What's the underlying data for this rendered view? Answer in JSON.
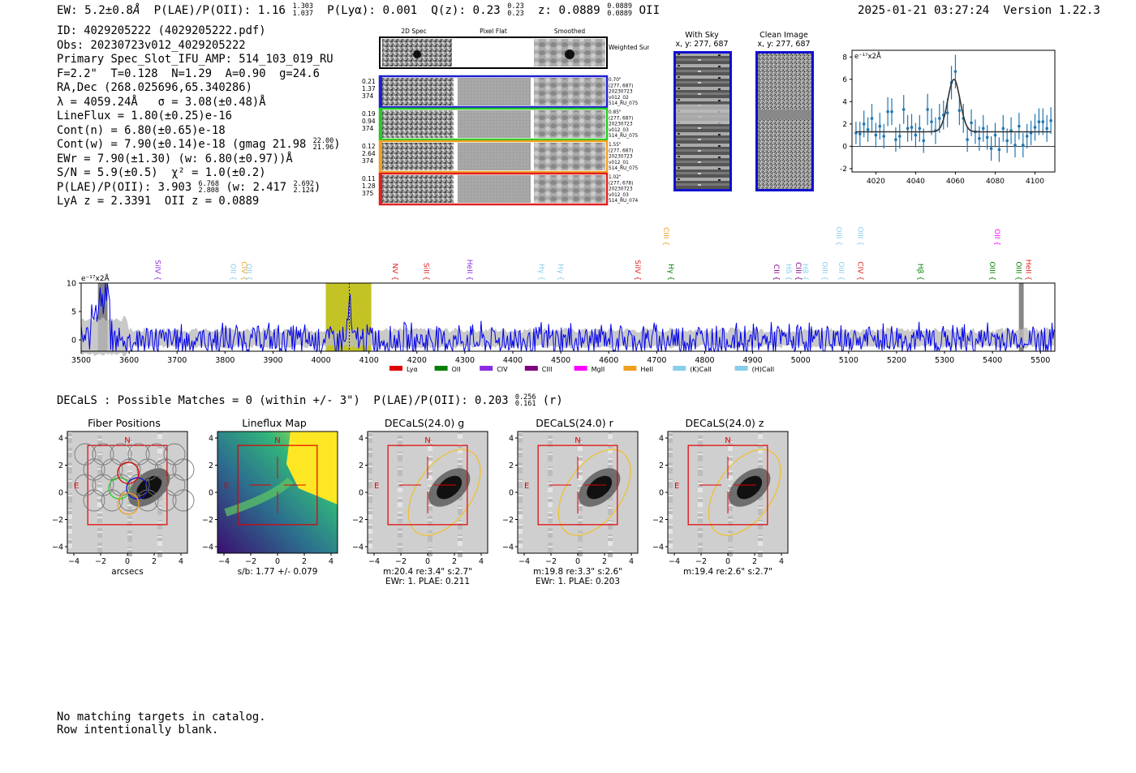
{
  "header": {
    "ew_label": "EW: 5.2±0.8",
    "ew_unit": "Å",
    "plae_label": "P(LAE)/P(OII): 1.16",
    "plae_hi": "1.303",
    "plae_lo": "1.037",
    "plya_label": "P(Lyα): 0.001",
    "qz_label": "Q(z): 0.23",
    "qz_hi": "0.23",
    "qz_lo": "0.23",
    "z_label": "z: 0.0889",
    "z_hi": "0.0889",
    "z_lo": "0.0889",
    "z_line": "OII",
    "timestamp": "2025-01-21 03:27:24",
    "version": "Version 1.22.3"
  },
  "info": {
    "id": "ID: 4029205222 (4029205222.pdf)",
    "obs": "Obs: 20230723v012_4029205222",
    "primary": "Primary Spec_Slot_IFU_AMP: 514_103_019_RU",
    "fiber": "F=2.2\"  T=0.128  N=1.29  A=0.90  g=24.6",
    "radec": "RA,Dec (268.025696,65.340286)",
    "lambda": "λ = 4059.24Å   σ = 3.08(±0.48)Å",
    "lineflux": "LineFlux = 1.80(±0.25)e-16",
    "contn": "Cont(n) = 6.80(±0.65)e-18",
    "contw": "Cont(w) = 7.90(±0.14)e-18 (gmag 21.98",
    "gmag_hi": "22.00",
    "gmag_lo": "21.96",
    "contw_end": ")",
    "ewr": "EWr = 7.90(±1.30) (w: 6.80(±0.97))Å",
    "sn": "S/N = 5.9(±0.5)  χ² = 1.0(±0.2)",
    "plae": "P(LAE)/P(OII): 3.903",
    "plae_hi": "6.768",
    "plae_lo": "2.808",
    "plae_w": "(w: 2.417",
    "plae_w_hi": "2.692",
    "plae_w_lo": "2.124",
    "plae_w_end": ")",
    "z": "LyA z = 2.3391  OII z = 0.0889"
  },
  "cutouts": {
    "col_labels": [
      "2D Spec",
      "Pixel Flat",
      "Smoothed"
    ],
    "weighted_label": "Weighted Sum",
    "rows": [
      {
        "left": [
          "0.21",
          "1.37",
          "374"
        ],
        "right": [
          "0.70\"",
          "(277, 687)",
          "20230723",
          "v012_02",
          "514_RU_075"
        ],
        "color": "#1f1fd0"
      },
      {
        "left": [
          "0.19",
          "0.94",
          "374"
        ],
        "right": [
          "0.85\"",
          "(277, 687)",
          "20230723",
          "v012_03",
          "514_RU_075"
        ],
        "color": "#22cc22"
      },
      {
        "left": [
          "0.12",
          "2.64",
          "374"
        ],
        "right": [
          "1.55\"",
          "(277, 687)",
          "20230723",
          "v012_01",
          "514_RU_075"
        ],
        "color": "#f0a020"
      },
      {
        "left": [
          "0.11",
          "1.28",
          "375"
        ],
        "right": [
          "1.02\"",
          "(277, 678)",
          "20230723",
          "v012_03",
          "514_RU_074"
        ],
        "color": "#e02020"
      }
    ]
  },
  "sky": {
    "with_sky_title": "With Sky",
    "with_sky_xy": "x, y: 277, 687",
    "clean_title": "Clean Image",
    "clean_xy": "x, y: 277, 687"
  },
  "chart_data": [
    {
      "type": "scatter",
      "title": "",
      "ylabel": "e⁻¹⁷x2Å",
      "xlabel": "",
      "xlim": [
        4008,
        4110
      ],
      "ylim": [
        -2.3,
        8.6
      ],
      "xticks": [
        4020,
        4040,
        4060,
        4080,
        4100
      ],
      "yticks": [
        -2,
        0,
        2,
        4,
        6,
        8
      ],
      "fit": {
        "center": 4059.24,
        "sigma": 3.08,
        "amp": 4.7,
        "base": 1.3,
        "color": "#333333"
      },
      "points_color": "#1f77b4",
      "x": [
        4010,
        4012,
        4014,
        4016,
        4018,
        4020,
        4022,
        4024,
        4026,
        4028,
        4030,
        4032,
        4034,
        4036,
        4038,
        4040,
        4042,
        4044,
        4046,
        4048,
        4050,
        4052,
        4054,
        4056,
        4058,
        4060,
        4062,
        4064,
        4066,
        4068,
        4070,
        4072,
        4074,
        4076,
        4078,
        4080,
        4082,
        4084,
        4086,
        4088,
        4090,
        4092,
        4094,
        4096,
        4098,
        4100,
        4102,
        4104,
        4106,
        4108
      ],
      "values": [
        1.2,
        1.1,
        2.0,
        1.5,
        2.5,
        1.0,
        1.8,
        0.9,
        3.1,
        3.1,
        0.6,
        0.9,
        3.3,
        1.6,
        1.7,
        1.0,
        1.6,
        0.5,
        3.3,
        2.2,
        1.4,
        2.5,
        2.8,
        3.0,
        5.7,
        6.7,
        3.2,
        2.5,
        0.6,
        2.1,
        1.3,
        0.7,
        1.6,
        0.8,
        -0.2,
        1.0,
        -0.3,
        1.6,
        0.5,
        1.4,
        0.1,
        1.8,
        0.1,
        0.9,
        1.2,
        1.7,
        2.2,
        2.2,
        1.6,
        2.3
      ],
      "errors": [
        1.0,
        1.1,
        1.2,
        1.1,
        1.3,
        1.1,
        1.2,
        1.1,
        1.3,
        1.2,
        1.1,
        1.1,
        1.3,
        1.2,
        1.2,
        1.1,
        1.2,
        1.1,
        1.4,
        1.2,
        1.2,
        1.3,
        1.3,
        1.3,
        1.5,
        1.5,
        1.3,
        1.3,
        1.1,
        1.2,
        1.1,
        1.1,
        1.2,
        1.1,
        1.1,
        1.1,
        1.1,
        1.2,
        1.1,
        1.2,
        1.1,
        1.2,
        1.1,
        1.1,
        1.1,
        1.2,
        1.2,
        1.2,
        1.2,
        1.2
      ]
    },
    {
      "type": "line",
      "title": "",
      "ylabel": "e⁻¹⁷x2Å",
      "xlim": [
        3500,
        5530
      ],
      "ylim": [
        -2,
        10
      ],
      "xticks": [
        3500,
        3600,
        3700,
        3800,
        3900,
        4000,
        4100,
        4200,
        4300,
        4400,
        4500,
        4600,
        4700,
        4800,
        4900,
        5000,
        5100,
        5200,
        5300,
        5400,
        5500
      ],
      "yticks": [
        0,
        5,
        10
      ],
      "highlight": {
        "x0": 4010,
        "x1": 4105,
        "line": 4059.24,
        "color": "#b8b800"
      },
      "masked": [
        {
          "x0": 3535,
          "x1": 3555
        },
        {
          "x0": 5455,
          "x1": 5465
        }
      ],
      "series_color": "#0000ee",
      "noise_seed": 7,
      "lines": [
        {
          "label": "SiIV",
          "x": 3655,
          "color": "#8a2be2",
          "tier": 0
        },
        {
          "label": "OII",
          "x": 3812,
          "color": "#87ceeb",
          "tier": 0
        },
        {
          "label": "CIV",
          "x": 3835,
          "color": "#f0a020",
          "tier": 0
        },
        {
          "label": "OII",
          "x": 3845,
          "color": "#87ceeb",
          "tier": 0
        },
        {
          "label": "NV",
          "x": 4150,
          "color": "#e02020",
          "tier": 0
        },
        {
          "label": "SiII",
          "x": 4215,
          "color": "#e02020",
          "tier": 0
        },
        {
          "label": "HeII",
          "x": 4305,
          "color": "#8a2be2",
          "tier": 0
        },
        {
          "label": "Hγ",
          "x": 4455,
          "color": "#87ceeb",
          "tier": 0
        },
        {
          "label": "Hγ",
          "x": 4495,
          "color": "#87ceeb",
          "tier": 0
        },
        {
          "label": "SiIV",
          "x": 4655,
          "color": "#e02020",
          "tier": 0
        },
        {
          "label": "Hγ",
          "x": 4725,
          "color": "#008000",
          "tier": 0
        },
        {
          "label": "CIII",
          "x": 4715,
          "color": "#f0a020",
          "tier": 1
        },
        {
          "label": "CII",
          "x": 4945,
          "color": "#800080",
          "tier": 0
        },
        {
          "label": "Hδ",
          "x": 4970,
          "color": "#87ceeb",
          "tier": 0
        },
        {
          "label": "CIII",
          "x": 4990,
          "color": "#800080",
          "tier": 0
        },
        {
          "label": "Hβ",
          "x": 5005,
          "color": "#87ceeb",
          "tier": 0
        },
        {
          "label": "OIII",
          "x": 5045,
          "color": "#87ceeb",
          "tier": 0
        },
        {
          "label": "OIII",
          "x": 5080,
          "color": "#87ceeb",
          "tier": 0
        },
        {
          "label": "OIII",
          "x": 5075,
          "color": "#87ceeb",
          "tier": 1
        },
        {
          "label": "OIII",
          "x": 5120,
          "color": "#87ceeb",
          "tier": 1
        },
        {
          "label": "CIV",
          "x": 5120,
          "color": "#e02020",
          "tier": 0
        },
        {
          "label": "Hβ",
          "x": 5245,
          "color": "#008000",
          "tier": 0
        },
        {
          "label": "OIII",
          "x": 5395,
          "color": "#008000",
          "tier": 0
        },
        {
          "label": "OII",
          "x": 5405,
          "color": "#ff00ff",
          "tier": 1
        },
        {
          "label": "OIII",
          "x": 5450,
          "color": "#008000",
          "tier": 0
        },
        {
          "label": "HeII",
          "x": 5470,
          "color": "#e02020",
          "tier": 0
        }
      ],
      "legend": [
        {
          "label": "Lyα",
          "color": "#e00000"
        },
        {
          "label": "OII",
          "color": "#008000"
        },
        {
          "label": "CIV",
          "color": "#8a2be2"
        },
        {
          "label": "CIII",
          "color": "#800080"
        },
        {
          "label": "MgII",
          "color": "#ff00ff"
        },
        {
          "label": "HeII",
          "color": "#f0a020"
        },
        {
          "label": "(K)CaII",
          "color": "#87ceeb"
        },
        {
          "label": "(H)CaII",
          "color": "#87ceeb"
        }
      ]
    }
  ],
  "decals": {
    "summary": "DECaLS : Possible Matches = 0 (within +/- 3\")  P(LAE)/P(OII): 0.203",
    "summary_hi": "0.256",
    "summary_lo": "0.161",
    "summary_band": "(r)",
    "panels": [
      {
        "title": "Fiber Positions",
        "cap1": "arcsecs",
        "cap2": ""
      },
      {
        "title": "Lineflux Map",
        "cap1": "s/b: 1.77 +/- 0.079",
        "cap2": ""
      },
      {
        "title": "DECaLS(24.0) g",
        "cap1": "m:20.4  re:3.4\"  s:2.7\"",
        "cap2": "EWr: 1. PLAE: 0.211"
      },
      {
        "title": "DECaLS(24.0) r",
        "cap1": "m:19.8  re:3.3\"  s:2.6\"",
        "cap2": "EWr: 1. PLAE: 0.203"
      },
      {
        "title": "DECaLS(24.0) z",
        "cap1": "m:19.4  re:2.6\"  s:2.7\"",
        "cap2": ""
      }
    ],
    "axis_ticks": [
      "−4",
      "−2",
      "0",
      "2",
      "4"
    ],
    "north": "N",
    "east": "E"
  },
  "footer": {
    "line1": "No matching targets in catalog.",
    "line2": "Row intentionally blank."
  }
}
